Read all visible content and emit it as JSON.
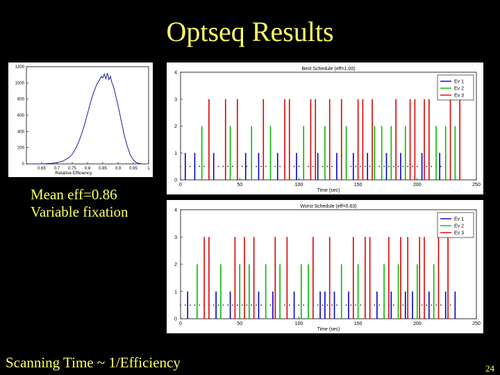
{
  "slide": {
    "title": "Optseq Results",
    "stats_line1": "Mean eff=0.86",
    "stats_line2": "Variable fixation",
    "footer": "Scanning Time ~ 1/Efficiency",
    "page_number": "24"
  },
  "chart_data": [
    {
      "type": "line",
      "xlabel": "Relative Efficiency",
      "ylabel": "",
      "xlim": [
        0.6,
        1.0
      ],
      "ylim": [
        0,
        1200
      ],
      "x_ticks": [
        "0.65",
        "0.7",
        "0.75",
        "0.8",
        "0.85",
        "0.9",
        "0.95",
        "1"
      ],
      "y_ticks": [
        "0",
        "200",
        "400",
        "600",
        "800",
        "1000",
        "1200"
      ],
      "color": "#1a1aa0",
      "x": [
        0.62,
        0.64,
        0.66,
        0.68,
        0.7,
        0.72,
        0.74,
        0.75,
        0.76,
        0.77,
        0.78,
        0.79,
        0.8,
        0.81,
        0.82,
        0.83,
        0.84,
        0.845,
        0.85,
        0.855,
        0.86,
        0.865,
        0.87,
        0.875,
        0.88,
        0.885,
        0.89,
        0.9,
        0.91,
        0.92,
        0.93,
        0.94,
        0.95,
        0.96,
        0.97,
        0.98
      ],
      "y": [
        0,
        0,
        2,
        6,
        15,
        35,
        80,
        120,
        180,
        260,
        360,
        480,
        620,
        760,
        880,
        980,
        1040,
        1080,
        1060,
        1110,
        1050,
        1120,
        1040,
        1080,
        1000,
        960,
        880,
        720,
        540,
        360,
        220,
        110,
        50,
        15,
        4,
        0
      ]
    },
    {
      "type": "bar",
      "title": "Best Schedule (eff=1.00)",
      "xlabel": "Time (sec)",
      "xlim": [
        0,
        250
      ],
      "ylim": [
        0,
        4
      ],
      "x_ticks": [
        "0",
        "50",
        "100",
        "150",
        "200",
        "250"
      ],
      "y_ticks": [
        "0",
        "1",
        "2",
        "3",
        "4"
      ],
      "fixation_level": 0.5,
      "fixation_every": 4,
      "series": [
        {
          "name": "Ev 1",
          "color": "#0000cc",
          "level": 1,
          "times": [
            4,
            12,
            28,
            55,
            66,
            82,
            98,
            116,
            132,
            146,
            158,
            174,
            186,
            204,
            219
          ]
        },
        {
          "name": "Ev 2",
          "color": "#00bb00",
          "level": 2,
          "times": [
            18,
            42,
            60,
            76,
            104,
            122,
            140,
            164,
            170,
            178,
            190,
            216,
            224,
            232
          ]
        },
        {
          "name": "Ev 3",
          "color": "#dd0000",
          "level": 3,
          "times": [
            24,
            38,
            48,
            70,
            88,
            92,
            110,
            114,
            126,
            136,
            150,
            154,
            162,
            182,
            194,
            198,
            206,
            210,
            228,
            236
          ]
        }
      ]
    },
    {
      "type": "bar",
      "title": "Worst Schedule (eff=0.63)",
      "xlabel": "Time (sec)",
      "xlim": [
        0,
        250
      ],
      "ylim": [
        0,
        4
      ],
      "x_ticks": [
        "0",
        "50",
        "100",
        "150",
        "200",
        "250"
      ],
      "y_ticks": [
        "0",
        "1",
        "2",
        "3",
        "4"
      ],
      "fixation_level": 0.5,
      "fixation_every": 4,
      "series": [
        {
          "name": "Ev 1",
          "color": "#0000cc",
          "level": 1,
          "times": [
            6,
            30,
            42,
            66,
            78,
            96,
            118,
            122,
            130,
            142,
            166,
            178,
            190,
            196,
            210,
            224,
            232
          ]
        },
        {
          "name": "Ev 2",
          "color": "#00bb00",
          "level": 2,
          "times": [
            14,
            34,
            50,
            58,
            72,
            84,
            102,
            108,
            136,
            150,
            172,
            184,
            200,
            214
          ]
        },
        {
          "name": "Ev 3",
          "color": "#dd0000",
          "level": 3,
          "times": [
            20,
            24,
            46,
            54,
            62,
            80,
            90,
            112,
            126,
            146,
            156,
            160,
            176,
            186,
            192,
            202,
            206,
            218,
            226
          ]
        }
      ]
    }
  ]
}
